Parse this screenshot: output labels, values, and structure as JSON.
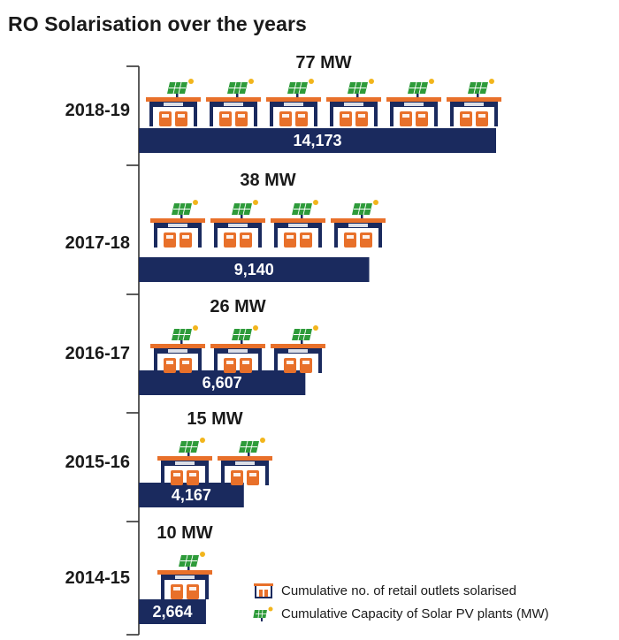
{
  "title": "RO Solarisation over the years",
  "colors": {
    "bar": "#1a2a5e",
    "roof": "#e8702a",
    "pump": "#e8702a",
    "canopy_post": "#1a2a5e",
    "panel": "#2e9b3a",
    "sun": "#f2b51c"
  },
  "legend": {
    "outlets_label": "Cumulative no. of retail outlets solarised",
    "outlets_icon": "fuel-station-icon",
    "capacity_label": "Cumulative Capacity of Solar PV plants (MW)",
    "capacity_icon": "solar-panel-icon"
  },
  "chart_data": {
    "type": "bar",
    "orientation": "horizontal",
    "title": "RO Solarisation over the years",
    "categories": [
      "2018-19",
      "2017-18",
      "2016-17",
      "2015-16",
      "2014-15"
    ],
    "series": [
      {
        "name": "Cumulative no. of retail outlets solarised",
        "values": [
          14173,
          9140,
          6607,
          4167,
          2664
        ]
      }
    ],
    "value_labels": [
      "14,173",
      "9,140",
      "6,607",
      "4,167",
      "2,664"
    ],
    "capacity_labels": [
      "77 MW",
      "38 MW",
      "26 MW",
      "15 MW",
      "10 MW"
    ],
    "capacity_mw": [
      77,
      38,
      26,
      15,
      10
    ],
    "station_icon_counts": [
      6,
      4,
      3,
      2,
      1
    ],
    "legend_position": "bottom-right"
  }
}
